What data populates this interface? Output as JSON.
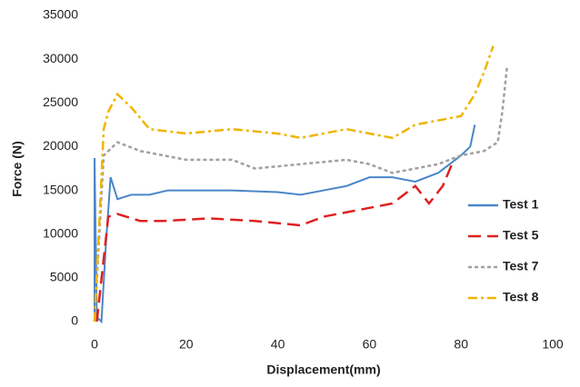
{
  "chart_data": {
    "type": "line",
    "xlabel": "Displacement(mm)",
    "ylabel": "Force (N)",
    "xlim": [
      0,
      100
    ],
    "xticks": [
      0,
      20,
      40,
      60,
      80,
      100
    ],
    "ylim": [
      0,
      35000
    ],
    "yticks": [
      0,
      5000,
      10000,
      15000,
      20000,
      25000,
      30000,
      35000
    ],
    "grid": false,
    "legend": "right",
    "series": [
      {
        "name": "Test 1",
        "color": "#4a86c8",
        "style": "solid",
        "x": [
          0,
          0,
          0.5,
          1.5,
          2.5,
          3.5,
          5,
          8,
          12,
          16,
          20,
          30,
          40,
          45,
          50,
          55,
          60,
          65,
          70,
          75,
          80,
          82,
          83
        ],
        "values": [
          0,
          18700,
          500,
          0,
          9000,
          16500,
          14000,
          14500,
          14500,
          15000,
          15000,
          15000,
          14800,
          14500,
          15000,
          15500,
          16500,
          16500,
          16000,
          17000,
          19000,
          20000,
          22500
        ]
      },
      {
        "name": "Test 5",
        "color": "#e02020",
        "style": "dashed",
        "x": [
          0.5,
          3,
          5,
          10,
          15,
          25,
          35,
          45,
          50,
          55,
          60,
          65,
          70,
          73,
          76,
          78
        ],
        "values": [
          0,
          12000,
          12300,
          11500,
          11500,
          11800,
          11500,
          11000,
          12000,
          12500,
          13000,
          13500,
          15500,
          13500,
          15500,
          18000
        ]
      },
      {
        "name": "Test 7",
        "color": "#a0a0a0",
        "style": "dotted",
        "x": [
          0,
          2,
          5,
          10,
          20,
          30,
          35,
          45,
          55,
          60,
          65,
          70,
          75,
          80,
          85,
          88,
          89,
          90
        ],
        "values": [
          0,
          19000,
          20500,
          19500,
          18500,
          18500,
          17500,
          18000,
          18500,
          18000,
          17000,
          17500,
          18000,
          19000,
          19500,
          20500,
          24000,
          29000
        ]
      },
      {
        "name": "Test 8",
        "color": "#f0b400",
        "style": "dashdot",
        "x": [
          0,
          2,
          3,
          5,
          8,
          12,
          20,
          30,
          40,
          45,
          55,
          60,
          65,
          70,
          75,
          80,
          83,
          85,
          87
        ],
        "values": [
          0,
          22000,
          24000,
          26000,
          24500,
          22000,
          21500,
          22000,
          21500,
          21000,
          22000,
          21500,
          21000,
          22500,
          23000,
          23500,
          26000,
          28500,
          31500
        ]
      }
    ]
  }
}
